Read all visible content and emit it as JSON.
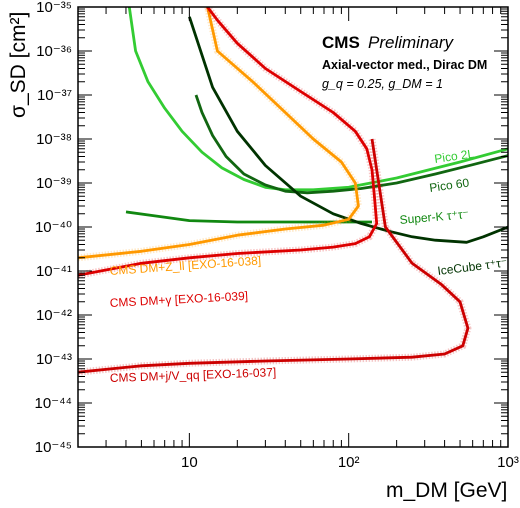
{
  "chart_data": {
    "type": "line",
    "title": "CMS",
    "subtitle": "Preliminary",
    "annotations": {
      "model": "Axial-vector med., Dirac DM",
      "couplings": "g_q = 0.25, g_DM = 1"
    },
    "xlabel": "m_DM [GeV]",
    "ylabel": "σ_SD [cm²]",
    "xscale": "log",
    "yscale": "log",
    "xlim": [
      2,
      1000
    ],
    "ylim": [
      1e-45,
      1e-35
    ],
    "x_ticks": [
      "10",
      "10²",
      "10³"
    ],
    "y_ticks": [
      "10⁻⁴⁵",
      "10⁻⁴⁴",
      "10⁻⁴³",
      "10⁻⁴²",
      "10⁻⁴¹",
      "10⁻⁴⁰",
      "10⁻³⁹",
      "10⁻³⁸",
      "10⁻³⁷",
      "10⁻³⁶",
      "10⁻³⁵"
    ],
    "grid": false,
    "series": [
      {
        "name": "Pico 2L",
        "color": "#33cc33",
        "x": [
          4.2,
          4.6,
          5.5,
          7,
          9,
          12,
          16,
          22,
          30,
          40,
          60,
          100,
          200,
          500,
          1000
        ],
        "y": [
          1e-35,
          1e-36,
          2e-37,
          5e-38,
          1.5e-38,
          5e-39,
          2.2e-39,
          1.2e-39,
          8e-40,
          7e-40,
          7e-40,
          8e-40,
          1.3e-39,
          3e-39,
          6e-39
        ]
      },
      {
        "name": "Pico 60",
        "color": "#116611",
        "x": [
          11,
          12,
          14,
          17,
          22,
          30,
          40,
          55,
          80,
          120,
          200,
          350,
          600,
          1000
        ],
        "y": [
          1e-37,
          4e-38,
          1.2e-38,
          4e-39,
          1.6e-39,
          9e-40,
          6.5e-40,
          6e-40,
          6.5e-40,
          7.5e-40,
          1e-39,
          1.6e-39,
          2.6e-39,
          4.2e-39
        ]
      },
      {
        "name": "Super-K τ⁺τ⁻",
        "color": "#118811",
        "x": [
          4,
          6,
          10,
          20,
          50,
          100,
          140
        ],
        "y": [
          2.2e-40,
          1.8e-40,
          1.4e-40,
          1.3e-40,
          1.3e-40,
          1.3e-40,
          1.3e-40
        ]
      },
      {
        "name": "IceCube τ⁺τ⁻",
        "color": "#003300",
        "x": [
          10,
          14,
          20,
          30,
          50,
          80,
          120,
          180,
          250,
          350,
          550,
          700,
          1000
        ],
        "y": [
          6e-36,
          1.5e-37,
          1.5e-38,
          2.5e-39,
          5e-40,
          2e-40,
          1.2e-40,
          8e-41,
          6e-41,
          5e-41,
          4.5e-41,
          6e-41,
          1e-40
        ]
      },
      {
        "name": "CMS DM+Z_ll [EXO-16-038]",
        "color": "#ff9900",
        "x": [
          2,
          5,
          10,
          20,
          40,
          70,
          100,
          115,
          110,
          90,
          60,
          40,
          25,
          15,
          13
        ],
        "y": [
          2e-41,
          2.8e-41,
          4e-41,
          6.5e-41,
          9e-41,
          1.1e-40,
          1.5e-40,
          3e-40,
          1e-39,
          3e-39,
          1e-38,
          4e-38,
          2e-37,
          1e-36,
          1e-35
        ]
      },
      {
        "name": "CMS DM+γ [EXO-16-039]",
        "color": "#dd0000",
        "x": [
          2,
          5,
          10,
          20,
          50,
          80,
          110,
          135,
          150,
          145,
          140,
          130,
          110,
          80,
          50,
          30,
          20,
          15,
          13
        ],
        "y": [
          8e-42,
          1.5e-41,
          2e-41,
          2.5e-41,
          3e-41,
          3.5e-41,
          4.2e-41,
          6e-41,
          1.2e-40,
          5e-40,
          2e-39,
          6e-39,
          1.5e-38,
          4e-38,
          1.2e-37,
          4e-37,
          1.5e-36,
          5e-36,
          1e-35
        ]
      },
      {
        "name": "CMS DM+j/V_qq [EXO-16-037]",
        "color": "#cc0000",
        "x": [
          2,
          5,
          10,
          30,
          100,
          250,
          400,
          520,
          560,
          500,
          380,
          250,
          170,
          140
        ],
        "y": [
          5e-44,
          7e-44,
          8e-44,
          9e-44,
          1e-43,
          1.1e-43,
          1.3e-43,
          2e-43,
          5e-43,
          2e-42,
          5e-42,
          1.5e-41,
          1e-40,
          1e-38
        ]
      }
    ]
  }
}
